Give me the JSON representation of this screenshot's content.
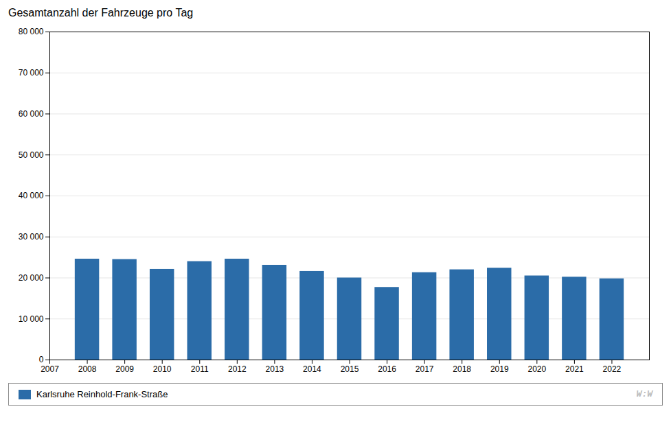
{
  "chart_data": {
    "type": "bar",
    "title": "Gesamtanzahl der Fahrzeuge pro Tag",
    "x": [
      2008,
      2009,
      2010,
      2011,
      2012,
      2013,
      2014,
      2015,
      2016,
      2017,
      2018,
      2019,
      2020,
      2021,
      2022
    ],
    "series": [
      {
        "name": "Karlsruhe Reinhold-Frank-Straße",
        "color": "#2b6ca8",
        "values": [
          24600,
          24500,
          22100,
          24000,
          24600,
          23100,
          21600,
          20000,
          17700,
          21300,
          22000,
          22400,
          20500,
          20200,
          19800
        ]
      }
    ],
    "xlim": [
      2007,
      2023
    ],
    "xticks": [
      2007,
      2008,
      2009,
      2010,
      2011,
      2012,
      2013,
      2014,
      2015,
      2016,
      2017,
      2018,
      2019,
      2020,
      2021,
      2022
    ],
    "ylim": [
      0,
      80000
    ],
    "yticks": [
      0,
      {
        "value": 10000,
        "label": "10 000"
      },
      {
        "value": 20000,
        "label": "20 000"
      },
      {
        "value": 30000,
        "label": "30 000"
      },
      {
        "value": 40000,
        "label": "40 000"
      },
      {
        "value": 50000,
        "label": "50 000"
      },
      {
        "value": 60000,
        "label": "60 000"
      },
      {
        "value": 70000,
        "label": "70 000"
      },
      {
        "value": 80000,
        "label": "80 000"
      }
    ],
    "grid": true,
    "legend": "bottom",
    "annotations": [
      "W:W"
    ]
  }
}
